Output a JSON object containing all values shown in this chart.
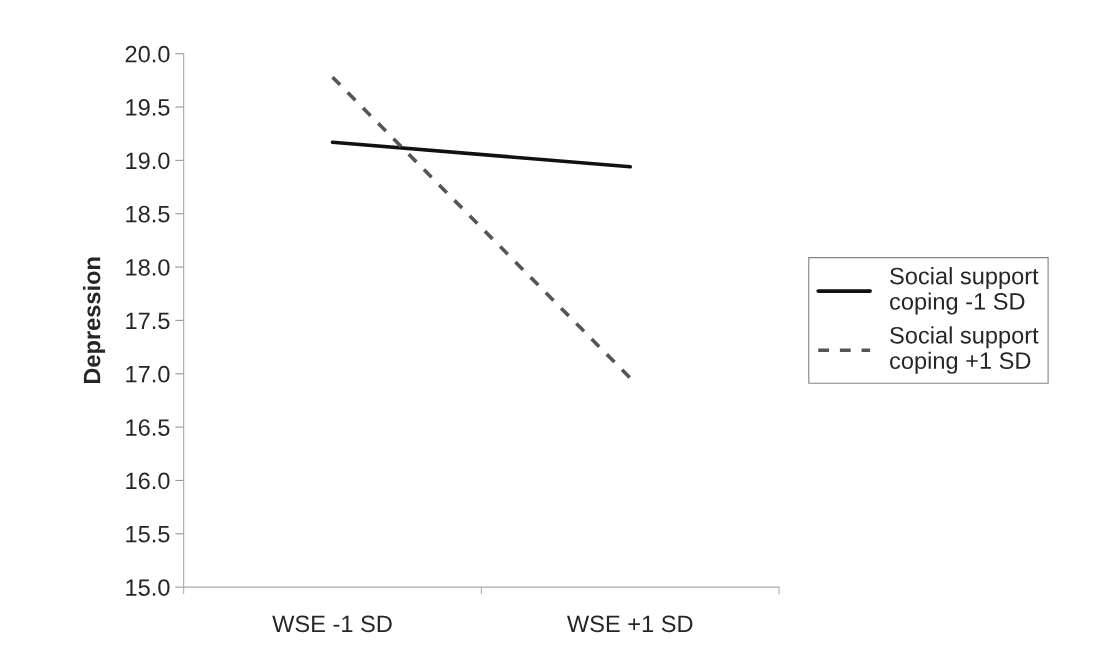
{
  "chart_data": {
    "type": "line",
    "ylabel": "Depression",
    "categories": [
      "WSE -1 SD",
      "WSE +1 SD"
    ],
    "series": [
      {
        "name": "Social support\ncoping -1 SD",
        "color": "#111111",
        "values": [
          19.17,
          18.94
        ],
        "line_style": "solid"
      },
      {
        "name": "Social support\ncoping +1 SD",
        "color": "#555555",
        "values": [
          19.78,
          16.96
        ],
        "line_style": "dashed"
      }
    ],
    "ylim": [
      15.0,
      20.0
    ],
    "yticks": [
      {
        "value": 15,
        "label": "15.0"
      },
      {
        "value": 15.5,
        "label": "15.5"
      },
      {
        "value": 16,
        "label": "16.0"
      },
      {
        "value": 16.5,
        "label": "16.5"
      },
      {
        "value": 17,
        "label": "17.0"
      },
      {
        "value": 17.5,
        "label": "17.5"
      },
      {
        "value": 18,
        "label": "18.0"
      },
      {
        "value": 18.5,
        "label": "18.5"
      },
      {
        "value": 19,
        "label": "19.0"
      },
      {
        "value": 19.5,
        "label": "19.5"
      },
      {
        "value": 20,
        "label": "20.0"
      }
    ],
    "grid": false,
    "legend": "right",
    "marker": "none"
  }
}
